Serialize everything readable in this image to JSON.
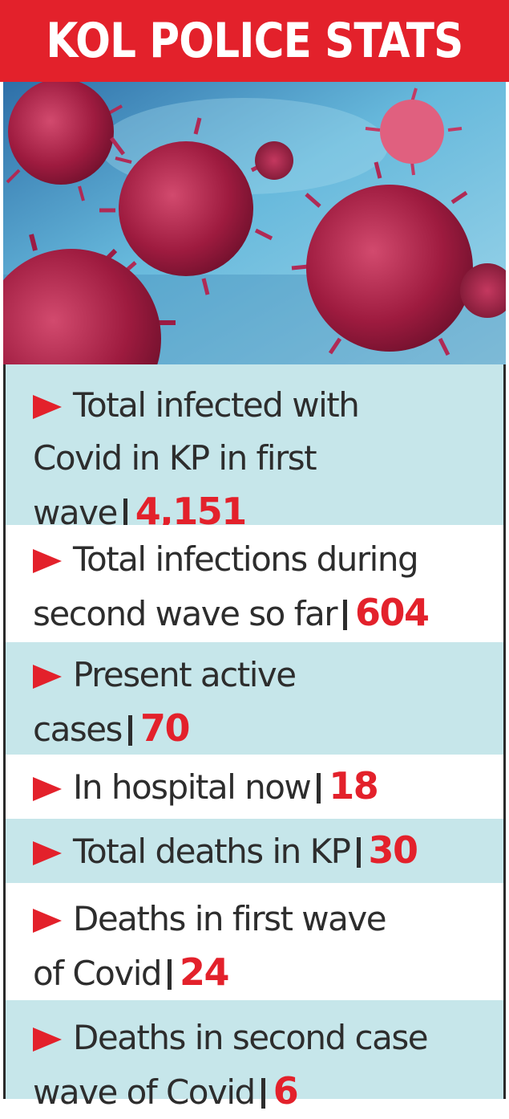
{
  "header": {
    "title": "KOL POLICE STATS",
    "background": "#e3212b",
    "text_color": "#ffffff"
  },
  "photo": {
    "subject": "coronavirus-particles-image"
  },
  "colors": {
    "accent_red": "#e3212b",
    "row_teal": "#c6e6ea",
    "text_dark": "#2d2d2d"
  },
  "stats": [
    {
      "lines": [
        "Total infected with",
        "Covid in KP in first",
        "wave"
      ],
      "value": "4,151"
    },
    {
      "lines": [
        "Total infections during",
        "second wave so far"
      ],
      "value": "604"
    },
    {
      "lines": [
        "Present active",
        "cases"
      ],
      "value": "70"
    },
    {
      "lines": [
        "In hospital now"
      ],
      "value": "18"
    },
    {
      "lines": [
        "Total deaths in KP"
      ],
      "value": "30"
    },
    {
      "lines": [
        "Deaths in first wave",
        "of Covid"
      ],
      "value": "24"
    },
    {
      "lines": [
        "Deaths in second case",
        "wave of Covid"
      ],
      "value": "6"
    }
  ]
}
